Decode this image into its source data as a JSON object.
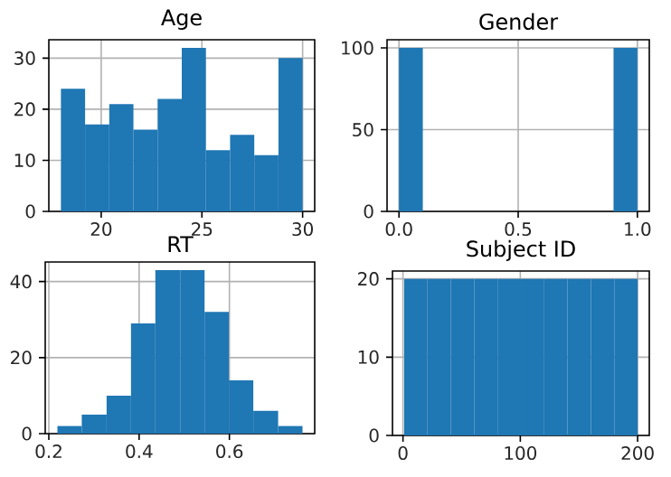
{
  "chart_data": [
    {
      "type": "histogram",
      "title": "Age",
      "bins": [
        18,
        19.2,
        20.4,
        21.6,
        22.8,
        24,
        25.2,
        26.4,
        27.6,
        28.8,
        30
      ],
      "values": [
        24,
        17,
        21,
        16,
        22,
        32,
        12,
        15,
        11,
        30
      ],
      "color": "#1f77b4",
      "xlim": [
        17.4,
        30.6
      ],
      "ylim": [
        0,
        33.6
      ],
      "xticks": [
        20,
        25,
        30
      ],
      "yticks": [
        0,
        10,
        20,
        30
      ],
      "grid": true
    },
    {
      "type": "histogram",
      "title": "Gender",
      "bins": [
        0,
        0.1,
        0.2,
        0.3,
        0.4,
        0.5,
        0.6,
        0.7,
        0.8,
        0.9,
        1
      ],
      "values": [
        100,
        0,
        0,
        0,
        0,
        0,
        0,
        0,
        0,
        100
      ],
      "color": "#1f77b4",
      "xlim": [
        -0.05,
        1.05
      ],
      "ylim": [
        0,
        105
      ],
      "xticks": [
        {
          "value": 0,
          "label": "0.0"
        },
        {
          "value": 0.5,
          "label": "0.5"
        },
        {
          "value": 1,
          "label": "1.0"
        }
      ],
      "yticks": [
        0,
        50,
        100
      ],
      "grid": true
    },
    {
      "type": "histogram",
      "title": "RT",
      "bins": [
        0.219,
        0.273,
        0.328,
        0.382,
        0.436,
        0.491,
        0.545,
        0.599,
        0.653,
        0.708,
        0.762
      ],
      "values": [
        2,
        5,
        10,
        29,
        43,
        43,
        32,
        14,
        6,
        2
      ],
      "color": "#1f77b4",
      "xlim": [
        0.192,
        0.789
      ],
      "ylim": [
        0,
        45.15
      ],
      "xticks": [
        0.2,
        0.4,
        0.6
      ],
      "yticks": [
        0,
        20,
        40
      ],
      "grid": true
    },
    {
      "type": "histogram",
      "title": "Subject ID",
      "bins": [
        1,
        20.9,
        40.8,
        60.7,
        80.6,
        100.5,
        120.4,
        140.3,
        160.2,
        180.1,
        200
      ],
      "values": [
        20,
        20,
        20,
        20,
        20,
        20,
        20,
        20,
        20,
        20
      ],
      "color": "#1f77b4",
      "xlim": [
        -8.95,
        209.95
      ],
      "ylim": [
        0,
        21
      ],
      "xticks": [
        0,
        100,
        200
      ],
      "yticks": [
        0,
        10,
        20
      ],
      "grid": true
    }
  ]
}
